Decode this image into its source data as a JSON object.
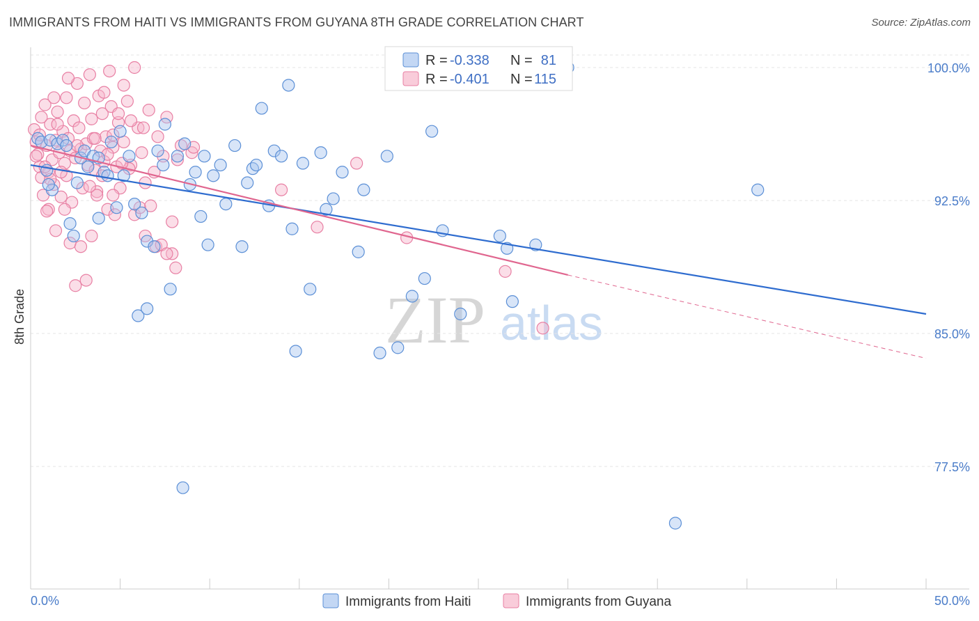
{
  "title": "IMMIGRANTS FROM HAITI VS IMMIGRANTS FROM GUYANA 8TH GRADE CORRELATION CHART",
  "source": "Source: ZipAtlas.com",
  "watermark": {
    "zip": "ZIP",
    "atlas": "atlas"
  },
  "colors": {
    "haiti_fill": "#a9c6ef",
    "haiti_stroke": "#5b8fd6",
    "haiti_line": "#2e6ccf",
    "guyana_fill": "#f6b6cb",
    "guyana_stroke": "#e87fa3",
    "guyana_line": "#e0668f",
    "grid": "#e6e6e6",
    "tick": "#4a7cc9"
  },
  "legend": {
    "rows": [
      {
        "r_label": "R = ",
        "r_value": "-0.338",
        "n_label": "N = ",
        "n_value": "81"
      },
      {
        "r_label": "R = ",
        "r_value": "-0.401",
        "n_label": "N = ",
        "n_value": "115"
      }
    ]
  },
  "chart_data": {
    "type": "scatter",
    "title": "IMMIGRANTS FROM HAITI VS IMMIGRANTS FROM GUYANA 8TH GRADE CORRELATION CHART",
    "xlabel": "",
    "ylabel": "8th Grade",
    "xlim": [
      0,
      50
    ],
    "ylim": [
      71.5,
      101.5
    ],
    "x_tick_labels": [
      "0.0%",
      "50.0%"
    ],
    "y_ticks": [
      77.5,
      85.0,
      92.5,
      100.0
    ],
    "y_tick_labels": [
      "77.5%",
      "85.0%",
      "92.5%",
      "100.0%"
    ],
    "grid": true,
    "legend_position": "top-center",
    "series": [
      {
        "name": "Immigrants from Haiti",
        "trend": {
          "x0": 0,
          "y0": 94.5,
          "x1": 50,
          "y1": 86.1
        },
        "points": [
          [
            0.4,
            96.0
          ],
          [
            0.6,
            95.8
          ],
          [
            0.9,
            94.2
          ],
          [
            1.1,
            95.9
          ],
          [
            1.2,
            93.1
          ],
          [
            1.5,
            95.7
          ],
          [
            1.8,
            95.9
          ],
          [
            2.2,
            91.2
          ],
          [
            2.4,
            90.5
          ],
          [
            2.6,
            93.5
          ],
          [
            2.8,
            94.9
          ],
          [
            3.0,
            95.3
          ],
          [
            3.2,
            94.4
          ],
          [
            3.5,
            95.0
          ],
          [
            3.8,
            94.9
          ],
          [
            4.1,
            94.1
          ],
          [
            4.3,
            93.9
          ],
          [
            4.5,
            95.8
          ],
          [
            4.8,
            92.1
          ],
          [
            5.2,
            93.9
          ],
          [
            5.5,
            95.0
          ],
          [
            5.8,
            92.3
          ],
          [
            6.2,
            91.8
          ],
          [
            6.5,
            90.2
          ],
          [
            6.9,
            89.9
          ],
          [
            7.1,
            95.3
          ],
          [
            7.4,
            94.5
          ],
          [
            7.8,
            87.5
          ],
          [
            8.2,
            95.0
          ],
          [
            8.6,
            95.7
          ],
          [
            8.9,
            93.4
          ],
          [
            9.2,
            94.1
          ],
          [
            9.5,
            91.6
          ],
          [
            9.7,
            95.0
          ],
          [
            9.9,
            90.0
          ],
          [
            10.2,
            93.9
          ],
          [
            10.6,
            94.5
          ],
          [
            10.9,
            92.3
          ],
          [
            11.4,
            95.6
          ],
          [
            11.8,
            89.9
          ],
          [
            12.1,
            93.5
          ],
          [
            12.4,
            94.3
          ],
          [
            12.6,
            94.5
          ],
          [
            12.9,
            97.7
          ],
          [
            13.3,
            92.2
          ],
          [
            13.6,
            95.3
          ],
          [
            14.0,
            95.0
          ],
          [
            14.4,
            99.0
          ],
          [
            14.6,
            90.9
          ],
          [
            14.8,
            84.0
          ],
          [
            15.2,
            94.6
          ],
          [
            15.6,
            87.5
          ],
          [
            16.2,
            95.2
          ],
          [
            16.5,
            92.0
          ],
          [
            16.9,
            92.6
          ],
          [
            17.4,
            94.1
          ],
          [
            18.3,
            89.6
          ],
          [
            18.6,
            93.1
          ],
          [
            19.5,
            83.9
          ],
          [
            19.9,
            95.0
          ],
          [
            20.5,
            84.2
          ],
          [
            21.3,
            87.1
          ],
          [
            22.0,
            88.1
          ],
          [
            22.4,
            96.4
          ],
          [
            23.0,
            90.8
          ],
          [
            24.0,
            86.1
          ],
          [
            26.2,
            90.5
          ],
          [
            26.6,
            89.8
          ],
          [
            26.9,
            86.8
          ],
          [
            28.2,
            90.0
          ],
          [
            30.0,
            100.0
          ],
          [
            40.6,
            93.1
          ],
          [
            36.0,
            74.3
          ],
          [
            8.5,
            76.3
          ],
          [
            6.0,
            86.0
          ],
          [
            6.5,
            86.4
          ],
          [
            5.0,
            96.4
          ],
          [
            7.5,
            96.8
          ],
          [
            1.0,
            93.4
          ],
          [
            2.0,
            95.6
          ],
          [
            3.8,
            91.5
          ]
        ]
      },
      {
        "name": "Immigrants from Guyana",
        "trend": {
          "x0": 0,
          "y0": 95.6,
          "x1": 30.0,
          "y1": 88.3
        },
        "trend_dashed": {
          "x0": 30.0,
          "y0": 88.3,
          "x1": 50,
          "y1": 83.6
        },
        "points": [
          [
            0.2,
            96.5
          ],
          [
            0.3,
            95.8
          ],
          [
            0.4,
            95.1
          ],
          [
            0.5,
            94.4
          ],
          [
            0.5,
            96.2
          ],
          [
            0.6,
            93.8
          ],
          [
            0.7,
            92.8
          ],
          [
            0.8,
            97.9
          ],
          [
            0.9,
            95.6
          ],
          [
            1.0,
            94.1
          ],
          [
            1.0,
            92.0
          ],
          [
            1.1,
            96.8
          ],
          [
            1.2,
            94.8
          ],
          [
            1.3,
            93.4
          ],
          [
            1.4,
            95.9
          ],
          [
            1.5,
            97.5
          ],
          [
            1.6,
            95.2
          ],
          [
            1.7,
            92.7
          ],
          [
            1.8,
            96.4
          ],
          [
            1.9,
            94.6
          ],
          [
            2.0,
            93.9
          ],
          [
            2.0,
            98.3
          ],
          [
            2.1,
            96.0
          ],
          [
            2.2,
            95.3
          ],
          [
            2.3,
            92.4
          ],
          [
            2.4,
            97.0
          ],
          [
            2.5,
            94.9
          ],
          [
            2.6,
            99.1
          ],
          [
            2.7,
            96.6
          ],
          [
            2.8,
            95.4
          ],
          [
            2.9,
            93.2
          ],
          [
            3.0,
            98.0
          ],
          [
            3.1,
            95.7
          ],
          [
            3.2,
            94.5
          ],
          [
            3.3,
            99.6
          ],
          [
            3.4,
            97.1
          ],
          [
            3.5,
            96.0
          ],
          [
            3.6,
            94.2
          ],
          [
            3.7,
            93.0
          ],
          [
            3.8,
            98.4
          ],
          [
            3.9,
            95.3
          ],
          [
            4.0,
            97.4
          ],
          [
            4.1,
            94.7
          ],
          [
            4.2,
            96.1
          ],
          [
            4.3,
            92.0
          ],
          [
            4.4,
            99.8
          ],
          [
            4.5,
            97.8
          ],
          [
            4.6,
            95.5
          ],
          [
            4.7,
            91.7
          ],
          [
            4.8,
            94.4
          ],
          [
            4.9,
            96.9
          ],
          [
            5.0,
            93.2
          ],
          [
            5.2,
            95.8
          ],
          [
            5.4,
            98.1
          ],
          [
            5.6,
            94.5
          ],
          [
            5.8,
            100.0
          ],
          [
            6.0,
            96.6
          ],
          [
            6.2,
            95.2
          ],
          [
            6.4,
            90.5
          ],
          [
            6.6,
            97.6
          ],
          [
            6.9,
            94.1
          ],
          [
            7.1,
            96.1
          ],
          [
            7.4,
            95.0
          ],
          [
            7.6,
            97.2
          ],
          [
            7.9,
            89.5
          ],
          [
            8.1,
            88.7
          ],
          [
            8.4,
            95.6
          ],
          [
            9.0,
            95.2
          ],
          [
            0.3,
            95.0
          ],
          [
            0.6,
            97.2
          ],
          [
            0.8,
            94.4
          ],
          [
            1.1,
            93.7
          ],
          [
            1.3,
            98.3
          ],
          [
            1.5,
            96.8
          ],
          [
            1.7,
            94.1
          ],
          [
            1.9,
            92.0
          ],
          [
            2.2,
            90.1
          ],
          [
            2.5,
            87.7
          ],
          [
            2.8,
            89.9
          ],
          [
            3.1,
            88.0
          ],
          [
            3.4,
            90.5
          ],
          [
            3.7,
            92.8
          ],
          [
            4.0,
            93.9
          ],
          [
            4.3,
            95.1
          ],
          [
            4.6,
            96.2
          ],
          [
            4.9,
            97.4
          ],
          [
            5.2,
            99.0
          ],
          [
            5.5,
            94.3
          ],
          [
            5.8,
            91.7
          ],
          [
            6.1,
            92.1
          ],
          [
            6.4,
            93.5
          ],
          [
            6.7,
            92.2
          ],
          [
            7.0,
            89.9
          ],
          [
            7.3,
            90.0
          ],
          [
            7.6,
            89.5
          ],
          [
            7.9,
            91.3
          ],
          [
            8.2,
            94.8
          ],
          [
            9.1,
            95.5
          ],
          [
            14.0,
            93.1
          ],
          [
            16.0,
            91.0
          ],
          [
            18.2,
            94.6
          ],
          [
            21.0,
            90.4
          ],
          [
            26.5,
            88.5
          ],
          [
            28.6,
            85.3
          ],
          [
            0.9,
            91.9
          ],
          [
            1.4,
            90.8
          ],
          [
            2.1,
            99.4
          ],
          [
            2.6,
            95.6
          ],
          [
            3.3,
            93.3
          ],
          [
            3.6,
            96.0
          ],
          [
            4.1,
            98.6
          ],
          [
            4.6,
            92.8
          ],
          [
            5.1,
            94.6
          ],
          [
            5.6,
            97.0
          ],
          [
            6.3,
            96.6
          ]
        ]
      }
    ]
  },
  "bottom_legend": [
    {
      "label": "Immigrants from Haiti"
    },
    {
      "label": "Immigrants from Guyana"
    }
  ]
}
